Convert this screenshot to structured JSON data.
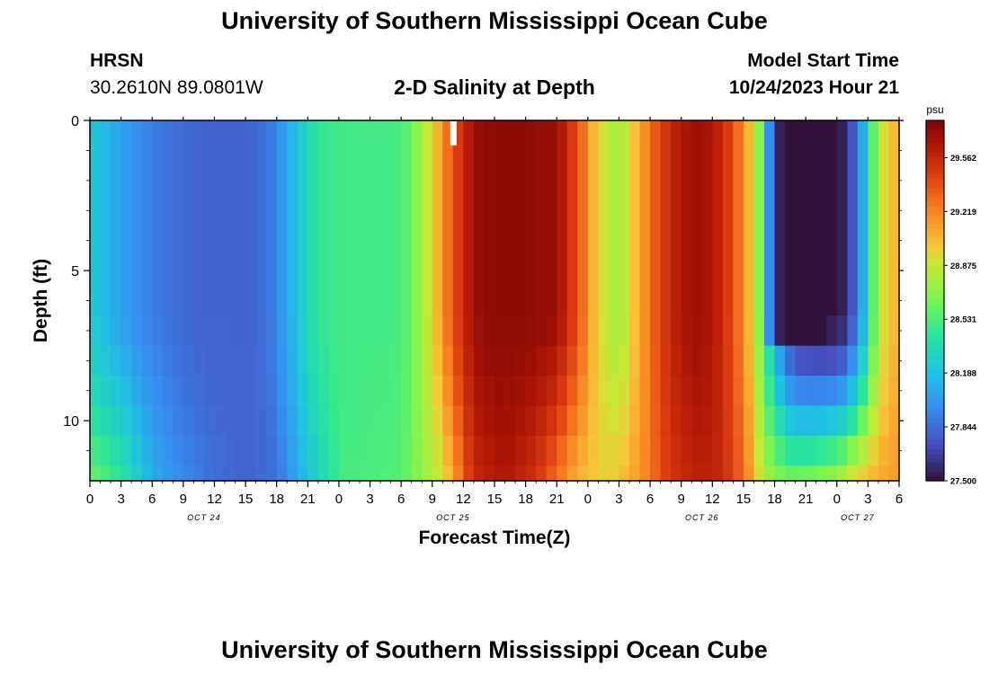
{
  "header": {
    "title": "University of Southern Mississippi Ocean Cube",
    "station": "HRSN",
    "coordinates": "30.2610N  89.0801W",
    "subtitle": "2-D Salinity at Depth",
    "model_start_label": "Model Start Time",
    "model_start_value": "10/24/2023 Hour 21"
  },
  "footer": {
    "title": "University of Southern Mississippi Ocean Cube"
  },
  "chart_data": {
    "type": "heatmap",
    "title": "2-D Salinity at Depth",
    "xlabel": "Forecast Time(Z)",
    "ylabel": "Depth (ft)",
    "x_range_hours": [
      0,
      78
    ],
    "y_range_ft": [
      0,
      12
    ],
    "x_tick_labels": [
      "0",
      "3",
      "6",
      "9",
      "12",
      "15",
      "18",
      "21",
      "0",
      "3",
      "6",
      "9",
      "12",
      "15",
      "18",
      "21",
      "0",
      "3",
      "6",
      "9",
      "12",
      "15",
      "18",
      "21",
      "0",
      "3",
      "6"
    ],
    "date_labels": [
      {
        "text": "OCT 24",
        "hour": 11
      },
      {
        "text": "OCT 25",
        "hour": 35
      },
      {
        "text": "OCT 26",
        "hour": 59
      },
      {
        "text": "OCT 27",
        "hour": 74
      }
    ],
    "y_tick_labels": [
      "0",
      "5",
      "10"
    ],
    "y_tick_values": [
      0,
      5,
      10
    ],
    "colorbar": {
      "unit": "psu",
      "ticks": [
        "27.500",
        "27.844",
        "28.188",
        "28.531",
        "28.875",
        "29.219",
        "29.562"
      ],
      "min": 27.5,
      "max": 29.8
    },
    "surface_salinity_keyframes": {
      "hours": [
        0,
        2,
        5,
        8,
        11,
        13,
        15,
        17,
        18,
        20,
        22,
        25,
        28,
        30,
        31,
        33,
        35,
        37,
        39,
        42,
        45,
        47,
        49,
        51,
        53,
        55,
        57,
        59,
        61,
        63,
        64,
        65,
        66,
        67,
        68,
        70,
        72,
        73,
        74,
        75,
        76,
        78
      ],
      "psu": [
        28.25,
        28.1,
        27.95,
        27.85,
        27.8,
        27.8,
        27.8,
        27.85,
        27.95,
        28.2,
        28.45,
        28.5,
        28.5,
        28.52,
        28.6,
        28.95,
        29.4,
        29.7,
        29.75,
        29.75,
        29.7,
        29.4,
        28.95,
        28.75,
        29.1,
        29.45,
        29.65,
        29.7,
        29.55,
        29.2,
        28.9,
        28.5,
        28.1,
        27.75,
        27.55,
        27.5,
        27.5,
        27.6,
        27.9,
        28.3,
        28.85,
        29.1
      ]
    },
    "bottom_salinity_keyframes": {
      "hours": [
        0,
        3,
        6,
        9,
        12,
        15,
        18,
        21,
        24,
        30,
        34,
        37,
        40,
        43,
        47,
        50,
        53,
        56,
        59,
        61,
        63,
        65,
        67,
        70,
        72,
        74,
        76,
        78
      ],
      "psu": [
        28.6,
        28.45,
        28.1,
        27.95,
        27.85,
        27.8,
        27.85,
        28.2,
        28.5,
        28.55,
        28.9,
        29.55,
        29.65,
        29.5,
        29.05,
        28.95,
        29.15,
        29.5,
        29.6,
        29.55,
        29.3,
        28.8,
        28.65,
        28.7,
        28.8,
        29.0,
        29.1,
        29.15
      ]
    },
    "low_salinity_core": {
      "hours": [
        65,
        71
      ],
      "depth_ft": [
        0,
        7.5
      ],
      "psu": 27.5
    },
    "missing_cell": {
      "hour": 35,
      "depth_ft": [
        0,
        0.5
      ]
    }
  }
}
